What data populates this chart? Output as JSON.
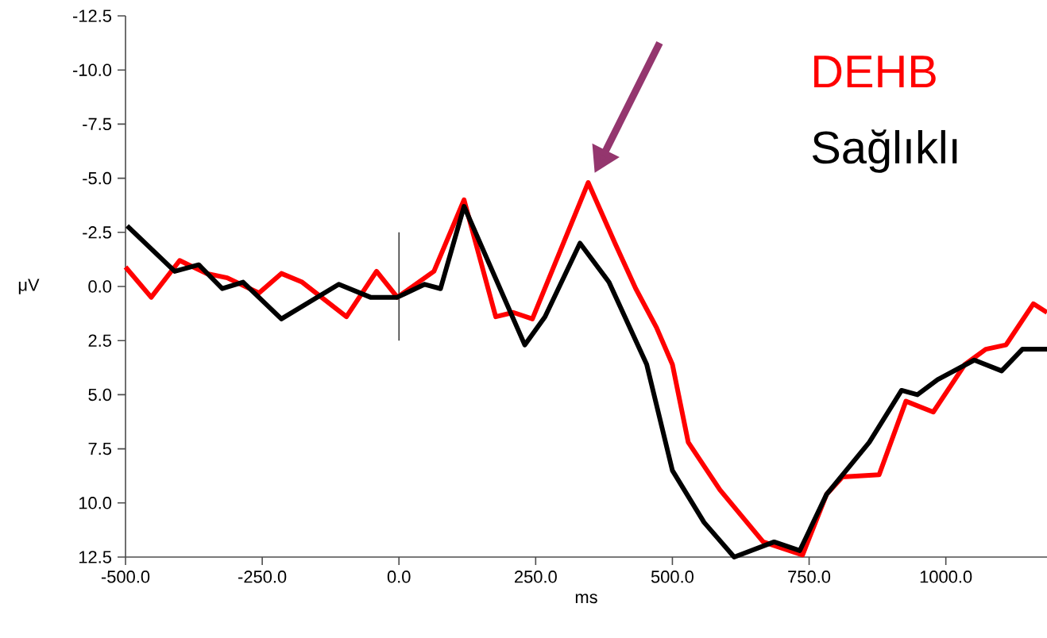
{
  "chart_data": {
    "type": "line",
    "xlabel": "ms",
    "ylabel": "μV",
    "x": [
      -500,
      -453,
      -401,
      -352,
      -314,
      -256,
      -215,
      -177,
      -96,
      -41,
      -3,
      64,
      119,
      177,
      209,
      244,
      346,
      395,
      433,
      471,
      500,
      529,
      587,
      666,
      738,
      782,
      811,
      878,
      927,
      977,
      1035,
      1073,
      1110,
      1160,
      1185
    ],
    "series": [
      {
        "name": "DEHB",
        "color": "#ff0000",
        "values": [
          -0.9,
          0.5,
          -1.2,
          -0.6,
          -0.4,
          0.3,
          -0.6,
          -0.2,
          1.4,
          -0.7,
          0.5,
          -0.7,
          -4.0,
          1.4,
          1.2,
          1.5,
          -4.8,
          -2.0,
          0.1,
          1.9,
          3.6,
          7.2,
          9.4,
          11.8,
          12.4,
          9.6,
          8.8,
          8.7,
          5.3,
          5.8,
          3.6,
          2.9,
          2.7,
          0.8,
          1.2
        ]
      },
      {
        "name": "Sağlıklı",
        "color": "#000000",
        "x": [
          -497,
          -410,
          -366,
          -323,
          -285,
          -215,
          -110,
          -52,
          -3,
          47,
          76,
          119,
          230,
          267,
          331,
          384,
          453,
          500,
          558,
          613,
          686,
          733,
          782,
          860,
          919,
          948,
          985,
          1052,
          1102,
          1140,
          1185
        ],
        "values": [
          -2.8,
          -0.7,
          -1.0,
          0.1,
          -0.2,
          1.5,
          -0.1,
          0.5,
          0.5,
          -0.1,
          0.1,
          -3.7,
          2.7,
          1.4,
          -2.0,
          -0.2,
          3.6,
          8.5,
          10.9,
          12.5,
          11.8,
          12.2,
          9.6,
          7.2,
          4.8,
          5.0,
          4.3,
          3.4,
          3.9,
          2.9,
          2.9
        ]
      }
    ],
    "xlim": [
      -500,
      1185
    ],
    "ylim": [
      12.5,
      -12.5
    ],
    "xticks": [
      {
        "value": -500,
        "label": "-500.0"
      },
      {
        "value": -250,
        "label": "-250.0"
      },
      {
        "value": 0,
        "label": "0.0"
      },
      {
        "value": 250,
        "label": "250.0"
      },
      {
        "value": 500,
        "label": "500.0"
      },
      {
        "value": 750,
        "label": "750.0"
      },
      {
        "value": 1000,
        "label": "1000.0"
      }
    ],
    "yticks": [
      {
        "value": -12.5,
        "label": "-12.5"
      },
      {
        "value": -10,
        "label": "-10.0"
      },
      {
        "value": -7.5,
        "label": "-7.5"
      },
      {
        "value": -5,
        "label": "-5.0"
      },
      {
        "value": -2.5,
        "label": "-2.5"
      },
      {
        "value": 0,
        "label": "0.0"
      },
      {
        "value": 2.5,
        "label": "2.5"
      },
      {
        "value": 5,
        "label": "5.0"
      },
      {
        "value": 7.5,
        "label": "7.5"
      },
      {
        "value": 10,
        "label": "10.0"
      },
      {
        "value": 12.5,
        "label": "12.5"
      }
    ],
    "ref_lines": [
      {
        "axis": "x",
        "value": 0,
        "color": "#000000"
      }
    ],
    "legend": "top right",
    "grid": false,
    "marker": "none",
    "line_style": "solid"
  }
}
